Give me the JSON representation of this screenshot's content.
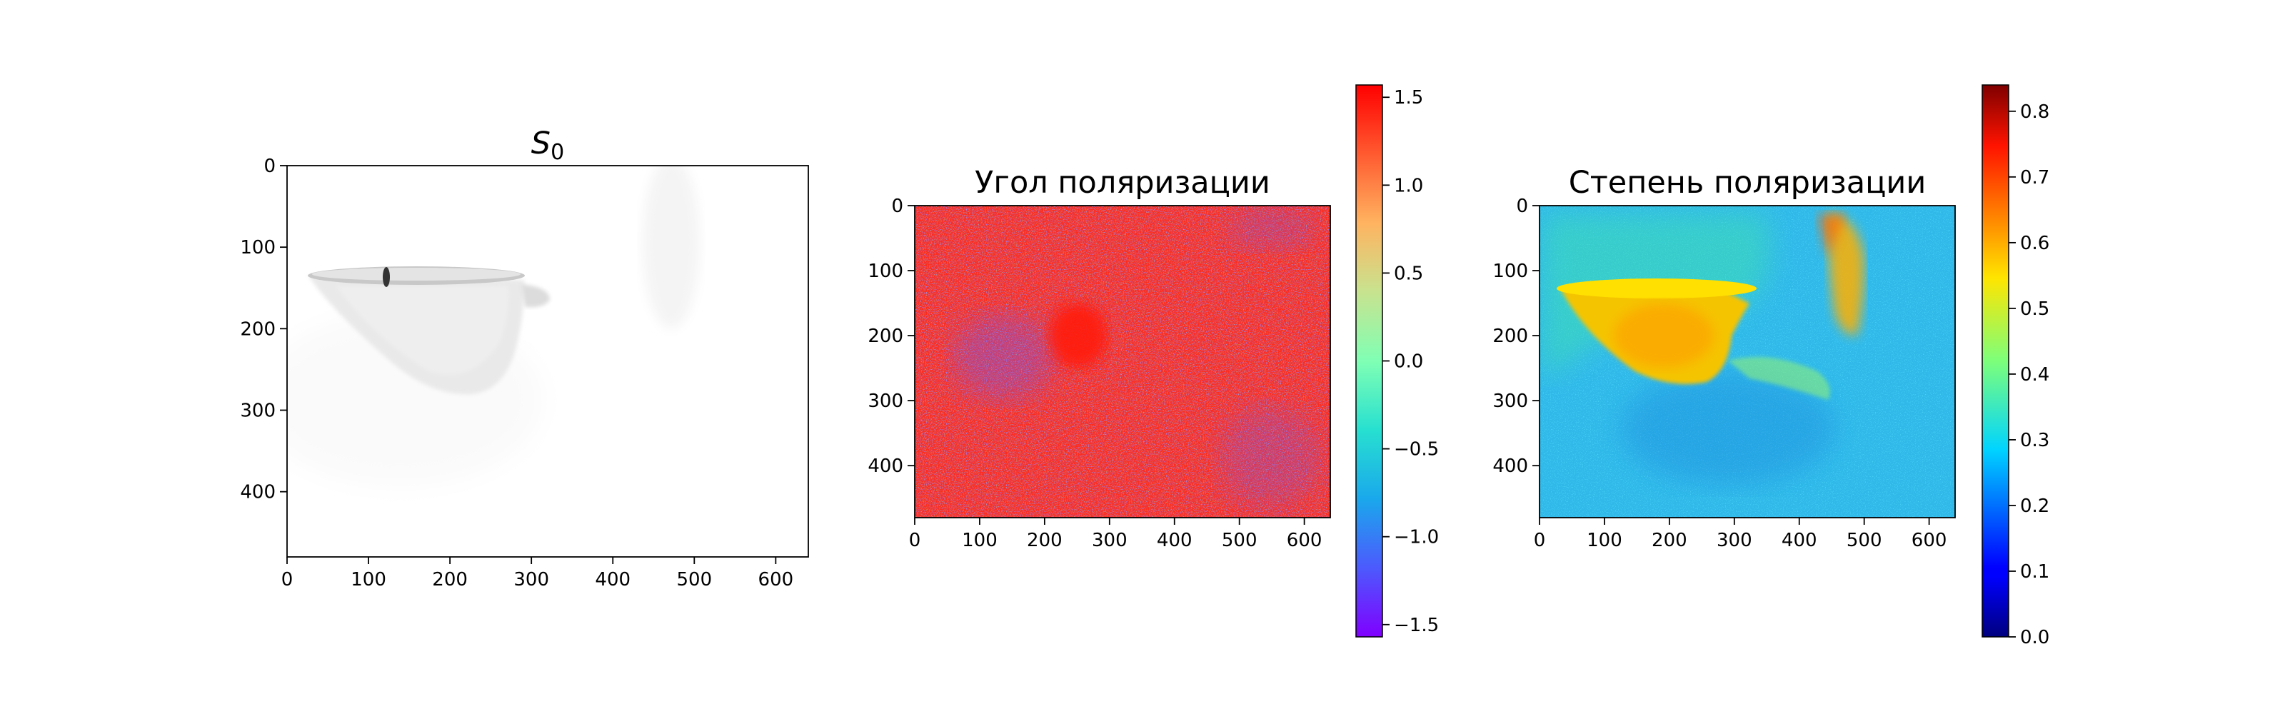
{
  "chart_data": [
    {
      "type": "heatmap",
      "title": "S",
      "title_subscript": "0",
      "colormap": "gray_r",
      "colorbar": false,
      "xlim": [
        0,
        640
      ],
      "ylim": [
        480,
        0
      ],
      "x_ticks": [
        0,
        100,
        200,
        300,
        400,
        500,
        600
      ],
      "y_ticks": [
        0,
        100,
        200,
        300,
        400
      ],
      "image": {
        "background": "white",
        "cup": {
          "center": [
            180,
            190
          ],
          "rim_y": 135,
          "rim_x_range": [
            25,
            290
          ],
          "bottom_y": 280,
          "handle_x_range": [
            290,
            325
          ]
        },
        "dark_spot": {
          "x": 120,
          "y_range": [
            130,
            150
          ]
        }
      }
    },
    {
      "type": "heatmap",
      "title": "Угол поляризации",
      "colormap": "rainbow",
      "xlim": [
        0,
        640
      ],
      "ylim": [
        480,
        0
      ],
      "x_ticks": [
        0,
        100,
        200,
        300,
        400,
        500,
        600
      ],
      "y_ticks": [
        0,
        100,
        200,
        300,
        400
      ],
      "colorbar": {
        "min": -1.57,
        "max": 1.57,
        "ticks": [
          1.5,
          1.0,
          0.5,
          0.0,
          -0.5,
          -1.0,
          -1.5
        ],
        "tick_labels": [
          "1.5",
          "1.0",
          "0.5",
          "0.0",
          "−0.5",
          "−1.0",
          "−1.5"
        ]
      },
      "image": {
        "texture": "noisy",
        "dominant_value": 1.5,
        "min_value": -1.57,
        "max_value": 1.57
      }
    },
    {
      "type": "heatmap",
      "title": "Степень поляризации",
      "colormap": "jet",
      "xlim": [
        0,
        640
      ],
      "ylim": [
        480,
        0
      ],
      "x_ticks": [
        0,
        100,
        200,
        300,
        400,
        500,
        600
      ],
      "y_ticks": [
        0,
        100,
        200,
        300,
        400
      ],
      "colorbar": {
        "min": 0.0,
        "max": 0.84,
        "ticks": [
          0.8,
          0.7,
          0.6,
          0.5,
          0.4,
          0.3,
          0.2,
          0.1,
          0.0
        ],
        "tick_labels": [
          "0.8",
          "0.7",
          "0.6",
          "0.5",
          "0.4",
          "0.3",
          "0.2",
          "0.1",
          "0.0"
        ]
      },
      "image": {
        "background_value": 0.3,
        "cup_value": 0.6,
        "bright_patch_value": 0.65
      }
    }
  ]
}
